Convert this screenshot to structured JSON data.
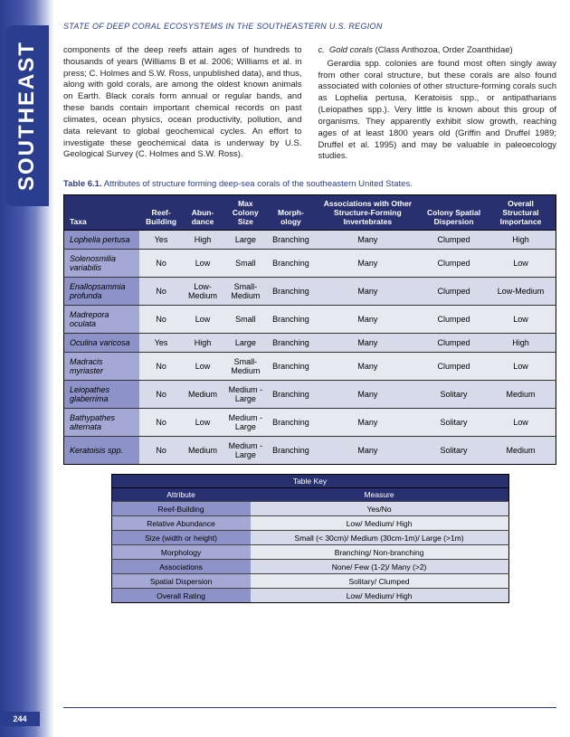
{
  "header": {
    "runningTitle": "STATE OF DEEP CORAL ECOSYSTEMS IN THE SOUTHEASTERN U.S. REGION",
    "tabLabel": "SOUTHEAST",
    "pageNumber": "244"
  },
  "bodyText": {
    "leftCol": "components of the deep reefs attain ages of hundreds to thousands of years (Williams B et al. 2006; Williams et al. in press; C. Holmes and S.W. Ross, unpublished data), and thus, along with gold corals, are among the oldest known animals on Earth.  Black corals form annual or regular bands, and these bands contain important chemical records on past climates, ocean physics, ocean productivity, pollution, and data relevant to global geochemical cycles.  An effort to investigate these geochemical data is underway by U.S. Geological Survey (C. Holmes and S.W. Ross).",
    "rightHead": {
      "c": "c.",
      "title": "Gold corals",
      "paren": "(Class Anthozoa, Order Zoanthidae)"
    },
    "rightCol": "Gerardia spp. colonies are found most often singly away from other coral structure, but these corals are also found associated with colonies of other structure-forming corals such as Lophelia pertusa, Keratoisis spp., or antipatharians (Leiopathes spp.).  Very little is known about this group of organisms.  They apparently exhibit slow growth, reaching ages of at least 1800 years old (Griffin and Druffel 1989; Druffel et al. 1995) and may be valuable in paleoecology studies."
  },
  "tableCaption": {
    "label": "Table 6.1.",
    "text": "Attributes of structure forming deep-sea corals of the southeastern United States."
  },
  "columns": [
    "Taxa",
    "Reef-Building",
    "Abun-dance",
    "Max Colony Size",
    "Morph-ology",
    "Associations with Other Structure-Forming Invertebrates",
    "Colony Spatial Dispersion",
    "Overall Structural Importance"
  ],
  "rows": [
    {
      "taxa": "Lophelia pertusa",
      "reef": "Yes",
      "abun": "High",
      "size": "Large",
      "morph": "Branching",
      "assoc": "Many",
      "disp": "Clumped",
      "overall": "High"
    },
    {
      "taxa": "Solenosmilia variabilis",
      "reef": "No",
      "abun": "Low",
      "size": "Small",
      "morph": "Branching",
      "assoc": "Many",
      "disp": "Clumped",
      "overall": "Low"
    },
    {
      "taxa": "Enallopsammia profunda",
      "reef": "No",
      "abun": "Low-Medium",
      "size": "Small-Medium",
      "morph": "Branching",
      "assoc": "Many",
      "disp": "Clumped",
      "overall": "Low-Medium"
    },
    {
      "taxa": "Madrepora oculata",
      "reef": "No",
      "abun": "Low",
      "size": "Small",
      "morph": "Branching",
      "assoc": "Many",
      "disp": "Clumped",
      "overall": "Low"
    },
    {
      "taxa": "Oculina varicosa",
      "reef": "Yes",
      "abun": "High",
      "size": "Large",
      "morph": "Branching",
      "assoc": "Many",
      "disp": "Clumped",
      "overall": "High"
    },
    {
      "taxa": "Madracis myriaster",
      "reef": "No",
      "abun": "Low",
      "size": "Small-Medium",
      "morph": "Branching",
      "assoc": "Many",
      "disp": "Clumped",
      "overall": "Low"
    },
    {
      "taxa": "Leiopathes glaberrima",
      "reef": "No",
      "abun": "Medium",
      "size": "Medium -Large",
      "morph": "Branching",
      "assoc": "Many",
      "disp": "Solitary",
      "overall": "Medium"
    },
    {
      "taxa": "Bathypathes alternata",
      "reef": "No",
      "abun": "Low",
      "size": "Medium -Large",
      "morph": "Branching",
      "assoc": "Many",
      "disp": "Solitary",
      "overall": "Low"
    },
    {
      "taxa": "Keratoisis spp.",
      "reef": "No",
      "abun": "Medium",
      "size": "Medium -Large",
      "morph": "Branching",
      "assoc": "Many",
      "disp": "Solitary",
      "overall": "Medium"
    }
  ],
  "key": {
    "title": "Table Key",
    "headAttr": "Attribute",
    "headMeas": "Measure",
    "rows": [
      {
        "a": "Reef-Building",
        "m": "Yes/No"
      },
      {
        "a": "Relative Abundance",
        "m": "Low/ Medium/ High"
      },
      {
        "a": "Size (width or height)",
        "m": "Small (< 30cm)/ Medium (30cm-1m)/ Large (>1m)"
      },
      {
        "a": "Morphology",
        "m": "Branching/ Non-branching"
      },
      {
        "a": "Associations",
        "m": "None/ Few (1-2)/ Many (>2)"
      },
      {
        "a": "Spatial Dispersion",
        "m": "Solitary/ Clumped"
      },
      {
        "a": "Overall Rating",
        "m": "Low/ Medium/ High"
      }
    ]
  }
}
